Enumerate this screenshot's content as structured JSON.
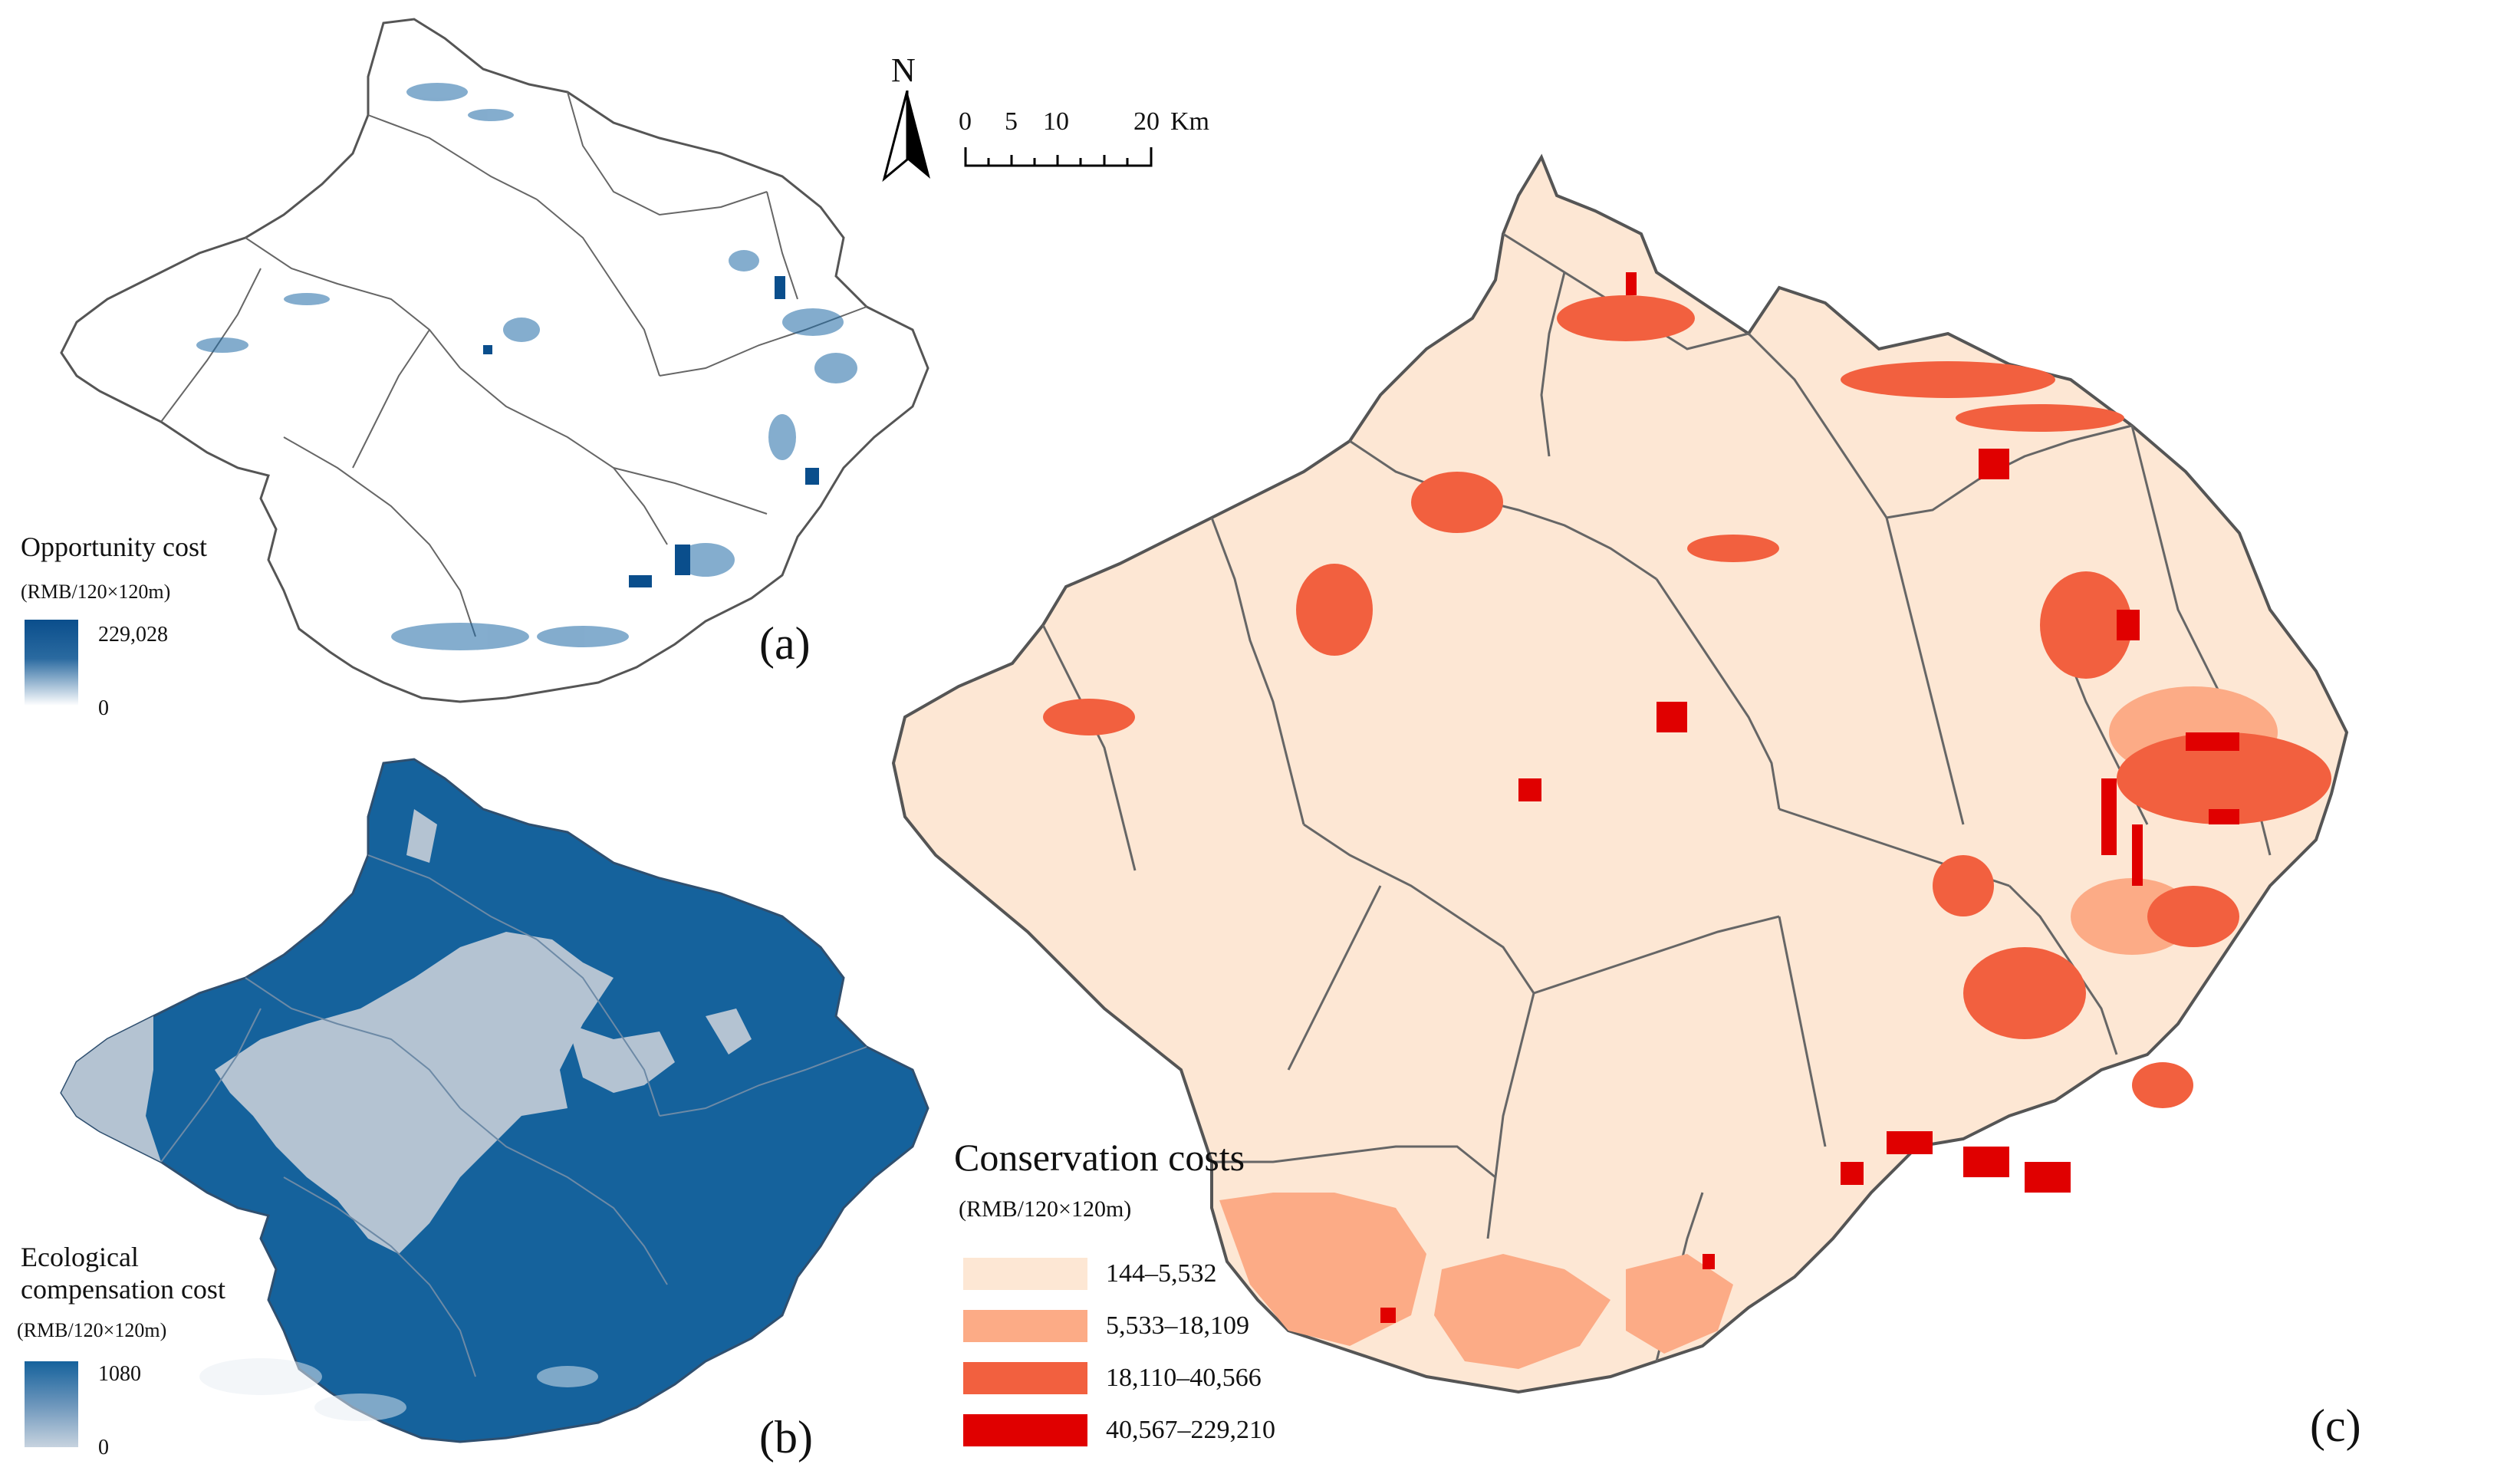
{
  "panel_a": {
    "title": "Opportunity cost",
    "unit": "(RMB/120×120m)",
    "max": "229,028",
    "min": "0",
    "label": "(a)",
    "colors": {
      "high": "#0a4e8c",
      "low": "#ffffff"
    }
  },
  "panel_b": {
    "title_line1": "Ecological",
    "title_line2": "compensation cost",
    "unit": "(RMB/120×120m)",
    "max": "1080",
    "min": "0",
    "label": "(b)",
    "colors": {
      "high": "#15629c",
      "low": "#c7d3df"
    }
  },
  "panel_c": {
    "title": "Conservation costs",
    "unit": "(RMB/120×120m)",
    "label": "(c)",
    "classes": [
      {
        "range": "144–5,532",
        "color": "#fde7d4"
      },
      {
        "range": "5,533–18,109",
        "color": "#fcab86"
      },
      {
        "range": "18,110–40,566",
        "color": "#f2603f"
      },
      {
        "range": "40,567–229,210",
        "color": "#e00000"
      }
    ]
  },
  "north_arrow": {
    "label": "N"
  },
  "scale_bar": {
    "ticks": [
      "0",
      "5",
      "10",
      "20"
    ],
    "unit": "Km"
  }
}
